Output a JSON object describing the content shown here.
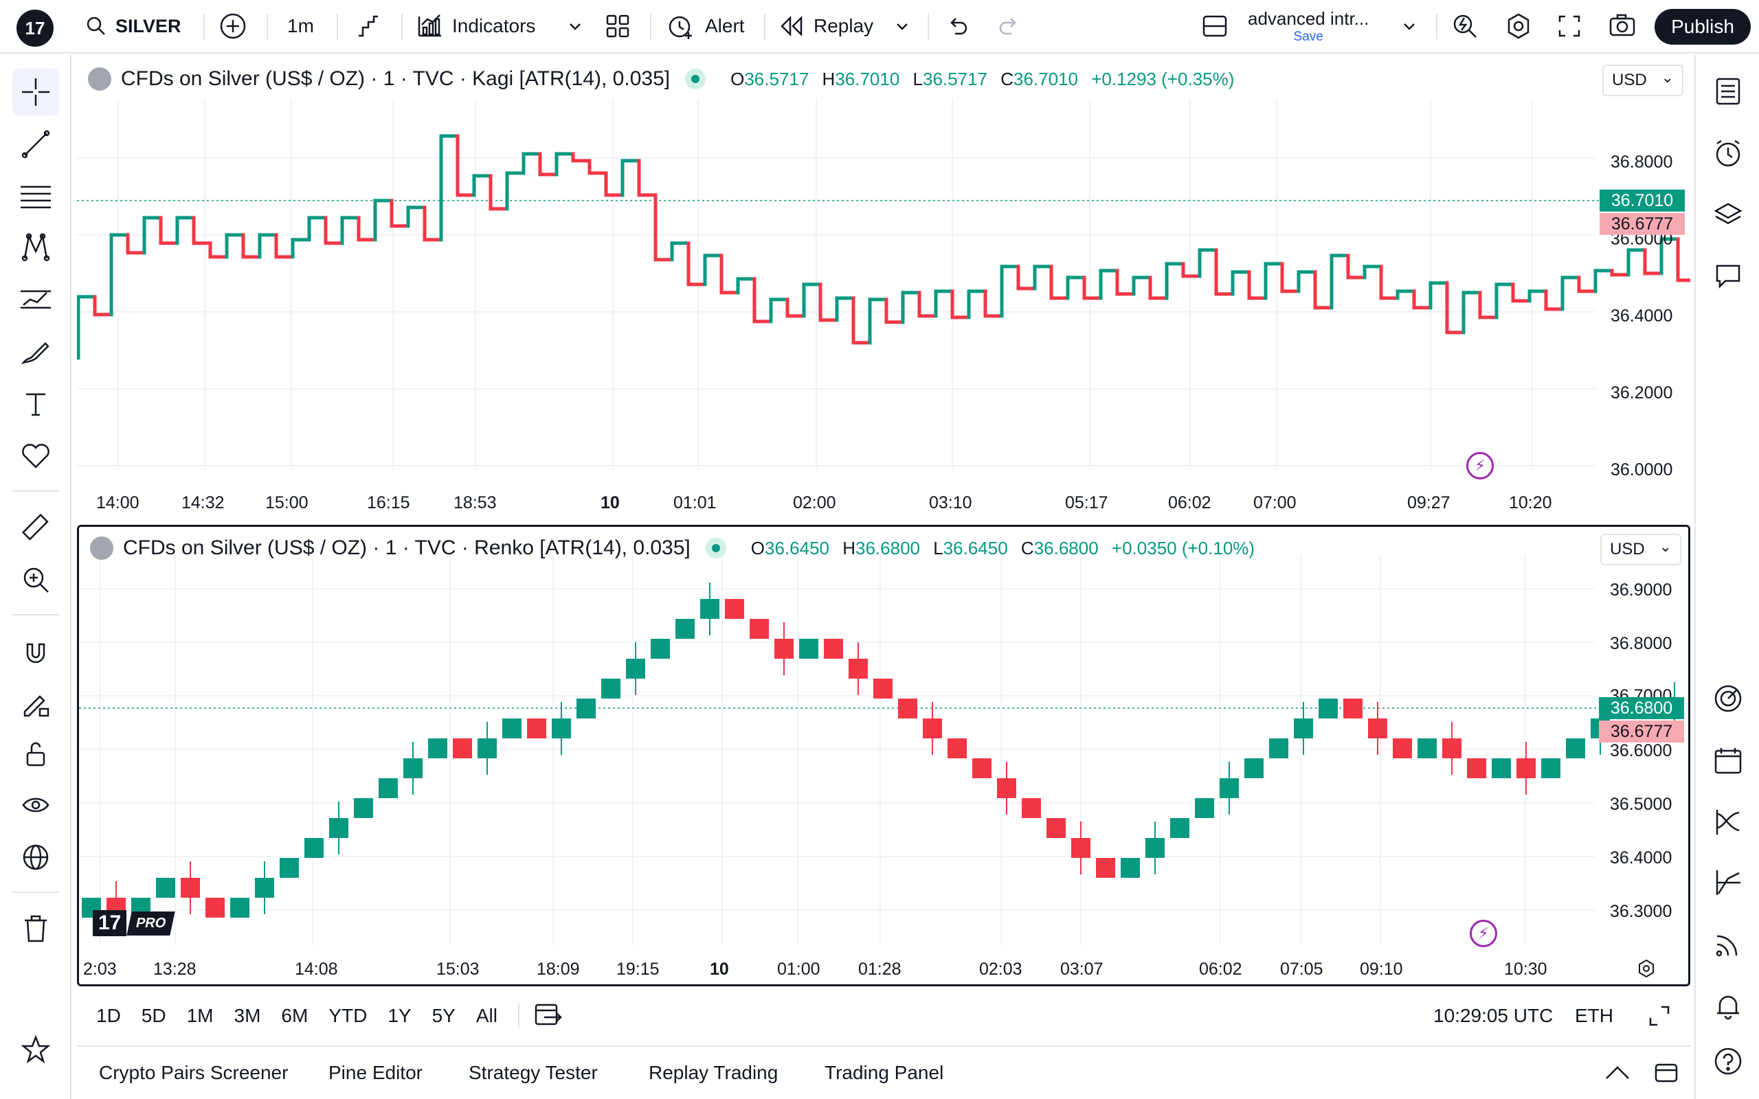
{
  "toolbar": {
    "logo": "17",
    "symbol": "SILVER",
    "interval": "1m",
    "indicators": "Indicators",
    "alert": "Alert",
    "replay": "Replay",
    "layout_name": "advanced intr...",
    "layout_save": "Save",
    "publish": "Publish"
  },
  "chart1": {
    "title": "CFDs on Silver (US$ / OZ) · 1 · TVC · Kagi [ATR(14), 0.035]",
    "ohlc": {
      "o": "36.5717",
      "h": "36.7010",
      "l": "36.5717",
      "c": "36.7010",
      "change": "+0.1293 (+0.35%)"
    },
    "currency": "USD",
    "price_labels": [
      "36.8000",
      "36.6000",
      "36.4000",
      "36.2000",
      "36.0000"
    ],
    "last_price": "36.7010",
    "prev_price": "36.6777",
    "time_labels": [
      "14:00",
      "14:32",
      "15:00",
      "16:15",
      "18:53",
      "10",
      "01:01",
      "02:00",
      "03:10",
      "05:17",
      "06:02",
      "07:00",
      "09:27",
      "10:20"
    ]
  },
  "chart2": {
    "title": "CFDs on Silver (US$ / OZ) · 1 · TVC · Renko [ATR(14), 0.035]",
    "ohlc": {
      "o": "36.6450",
      "h": "36.6800",
      "l": "36.6450",
      "c": "36.6800",
      "change": "+0.0350 (+0.10%)"
    },
    "currency": "USD",
    "price_labels": [
      "36.9000",
      "36.8000",
      "36.7000",
      "36.6000",
      "36.5000",
      "36.4000",
      "36.3000"
    ],
    "last_price": "36.6800",
    "prev_price": "36.6777",
    "time_labels": [
      "2:03",
      "13:28",
      "14:08",
      "15:03",
      "18:09",
      "19:15",
      "10",
      "01:00",
      "01:28",
      "02:03",
      "03:07",
      "06:02",
      "07:05",
      "09:10",
      "10:30"
    ],
    "watermark": "PRO"
  },
  "ranges": [
    "1D",
    "5D",
    "1M",
    "3M",
    "6M",
    "YTD",
    "1Y",
    "5Y",
    "All"
  ],
  "clock": "10:29:05 UTC",
  "session": "ETH",
  "bottom_tabs": [
    "Crypto Pairs Screener",
    "Pine Editor",
    "Strategy Tester",
    "Replay Trading",
    "Trading Panel"
  ],
  "colors": {
    "up": "#089981",
    "down": "#f23645",
    "accent": "#131722"
  }
}
